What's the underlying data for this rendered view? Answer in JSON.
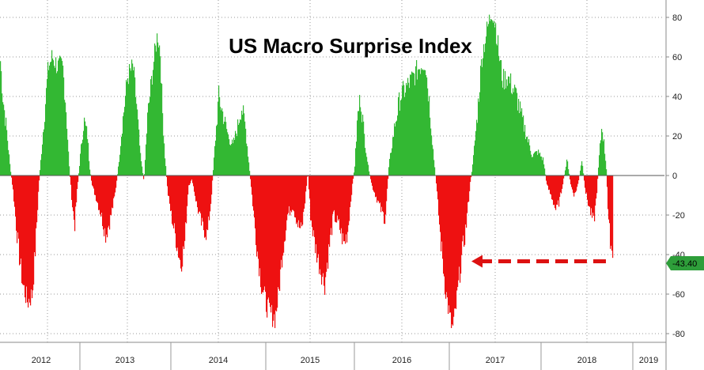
{
  "chart_data": {
    "type": "bar",
    "title": "US Macro Surprise Index",
    "xlabel": "",
    "ylabel": "",
    "ylim": [
      -80,
      85
    ],
    "yticks": [
      80,
      60,
      40,
      20,
      0,
      -20,
      -40,
      -60,
      -80
    ],
    "x_tick_labels": [
      "2012",
      "2013",
      "2014",
      "2015",
      "2016",
      "2017",
      "2018",
      "2019"
    ],
    "xlim": [
      2012.0,
      2019.2
    ],
    "grid": true,
    "positive_color": "#33b833",
    "negative_color": "#ee1111",
    "last_value": -43.4,
    "last_value_label": "-43.40",
    "last_value_badge_color": "#2e9e3a",
    "arrow_color": "#dd1111",
    "arrow_target": {
      "x": 2017.0,
      "y": -43.4
    },
    "series": [
      {
        "keypoints": [
          [
            2012.0,
            58
          ],
          [
            2012.03,
            40
          ],
          [
            2012.08,
            22
          ],
          [
            2012.12,
            5
          ],
          [
            2012.16,
            -8
          ],
          [
            2012.22,
            -35
          ],
          [
            2012.28,
            -55
          ],
          [
            2012.34,
            -64
          ],
          [
            2012.4,
            -60
          ],
          [
            2012.44,
            -35
          ],
          [
            2012.48,
            -5
          ],
          [
            2012.52,
            15
          ],
          [
            2012.56,
            35
          ],
          [
            2012.6,
            55
          ],
          [
            2012.65,
            60
          ],
          [
            2012.72,
            55
          ],
          [
            2012.78,
            55
          ],
          [
            2012.82,
            35
          ],
          [
            2012.86,
            5
          ],
          [
            2012.9,
            -15
          ],
          [
            2012.93,
            -25
          ],
          [
            2012.96,
            -8
          ],
          [
            2013.0,
            10
          ],
          [
            2013.04,
            28
          ],
          [
            2013.08,
            20
          ],
          [
            2013.1,
            5
          ],
          [
            2013.13,
            -5
          ],
          [
            2013.18,
            -12
          ],
          [
            2013.23,
            -20
          ],
          [
            2013.28,
            -30
          ],
          [
            2013.33,
            -22
          ],
          [
            2013.38,
            -10
          ],
          [
            2013.42,
            5
          ],
          [
            2013.46,
            25
          ],
          [
            2013.52,
            50
          ],
          [
            2013.58,
            55
          ],
          [
            2013.62,
            35
          ],
          [
            2013.66,
            10
          ],
          [
            2013.7,
            -3
          ],
          [
            2013.74,
            30
          ],
          [
            2013.8,
            55
          ],
          [
            2013.85,
            72
          ],
          [
            2013.88,
            62
          ],
          [
            2013.9,
            35
          ],
          [
            2013.93,
            10
          ],
          [
            2013.96,
            -8
          ],
          [
            2014.0,
            -20
          ],
          [
            2014.05,
            -32
          ],
          [
            2014.1,
            -45
          ],
          [
            2014.14,
            -35
          ],
          [
            2014.18,
            -5
          ],
          [
            2014.22,
            -2
          ],
          [
            2014.27,
            -15
          ],
          [
            2014.32,
            -25
          ],
          [
            2014.38,
            -30
          ],
          [
            2014.42,
            -12
          ],
          [
            2014.46,
            15
          ],
          [
            2014.5,
            40
          ],
          [
            2014.55,
            30
          ],
          [
            2014.6,
            20
          ],
          [
            2014.65,
            15
          ],
          [
            2014.7,
            25
          ],
          [
            2014.74,
            35
          ],
          [
            2014.78,
            25
          ],
          [
            2014.82,
            5
          ],
          [
            2014.86,
            -15
          ],
          [
            2014.9,
            -35
          ],
          [
            2014.95,
            -55
          ],
          [
            2015.0,
            -65
          ],
          [
            2015.05,
            -70
          ],
          [
            2015.1,
            -72
          ],
          [
            2015.14,
            -60
          ],
          [
            2015.18,
            -40
          ],
          [
            2015.24,
            -20
          ],
          [
            2015.3,
            -15
          ],
          [
            2015.36,
            -25
          ],
          [
            2015.4,
            -28
          ],
          [
            2015.44,
            -12
          ],
          [
            2015.47,
            2
          ],
          [
            2015.5,
            -20
          ],
          [
            2015.55,
            -35
          ],
          [
            2015.6,
            -45
          ],
          [
            2015.66,
            -55
          ],
          [
            2015.7,
            -40
          ],
          [
            2015.76,
            -20
          ],
          [
            2015.82,
            -25
          ],
          [
            2015.88,
            -35
          ],
          [
            2015.92,
            -28
          ],
          [
            2015.96,
            -10
          ],
          [
            2016.0,
            5
          ],
          [
            2016.03,
            30
          ],
          [
            2016.06,
            40
          ],
          [
            2016.1,
            20
          ],
          [
            2016.14,
            5
          ],
          [
            2016.18,
            -5
          ],
          [
            2016.22,
            -10
          ],
          [
            2016.28,
            -18
          ],
          [
            2016.32,
            -22
          ],
          [
            2016.36,
            5
          ],
          [
            2016.42,
            25
          ],
          [
            2016.48,
            40
          ],
          [
            2016.55,
            45
          ],
          [
            2016.62,
            50
          ],
          [
            2016.68,
            55
          ],
          [
            2016.74,
            58
          ],
          [
            2016.78,
            40
          ],
          [
            2016.83,
            10
          ],
          [
            2016.86,
            -5
          ],
          [
            2016.9,
            -30
          ],
          [
            2016.95,
            -55
          ],
          [
            2017.0,
            -72
          ],
          [
            2017.03,
            -78
          ],
          [
            2017.06,
            -70
          ],
          [
            2017.12,
            -45
          ],
          [
            2017.18,
            -25
          ],
          [
            2017.22,
            -5
          ],
          [
            2017.25,
            5
          ],
          [
            2017.3,
            30
          ],
          [
            2017.35,
            60
          ],
          [
            2017.4,
            72
          ],
          [
            2017.46,
            84
          ],
          [
            2017.5,
            76
          ],
          [
            2017.54,
            60
          ],
          [
            2017.58,
            48
          ],
          [
            2017.63,
            50
          ],
          [
            2017.68,
            45
          ],
          [
            2017.73,
            40
          ],
          [
            2017.78,
            30
          ],
          [
            2017.84,
            20
          ],
          [
            2017.9,
            10
          ],
          [
            2017.96,
            12
          ],
          [
            2018.02,
            8
          ],
          [
            2018.06,
            -5
          ],
          [
            2018.12,
            -12
          ],
          [
            2018.16,
            -18
          ],
          [
            2018.2,
            -12
          ],
          [
            2018.24,
            -2
          ],
          [
            2018.28,
            8
          ],
          [
            2018.32,
            -5
          ],
          [
            2018.36,
            -10
          ],
          [
            2018.4,
            -4
          ],
          [
            2018.44,
            8
          ],
          [
            2018.48,
            -8
          ],
          [
            2018.53,
            -18
          ],
          [
            2018.57,
            -24
          ],
          [
            2018.6,
            -10
          ],
          [
            2018.63,
            10
          ],
          [
            2018.66,
            26
          ],
          [
            2018.69,
            12
          ],
          [
            2018.71,
            2
          ],
          [
            2018.73,
            -25
          ],
          [
            2018.76,
            -35
          ],
          [
            2018.78,
            -43.4
          ]
        ]
      }
    ]
  }
}
